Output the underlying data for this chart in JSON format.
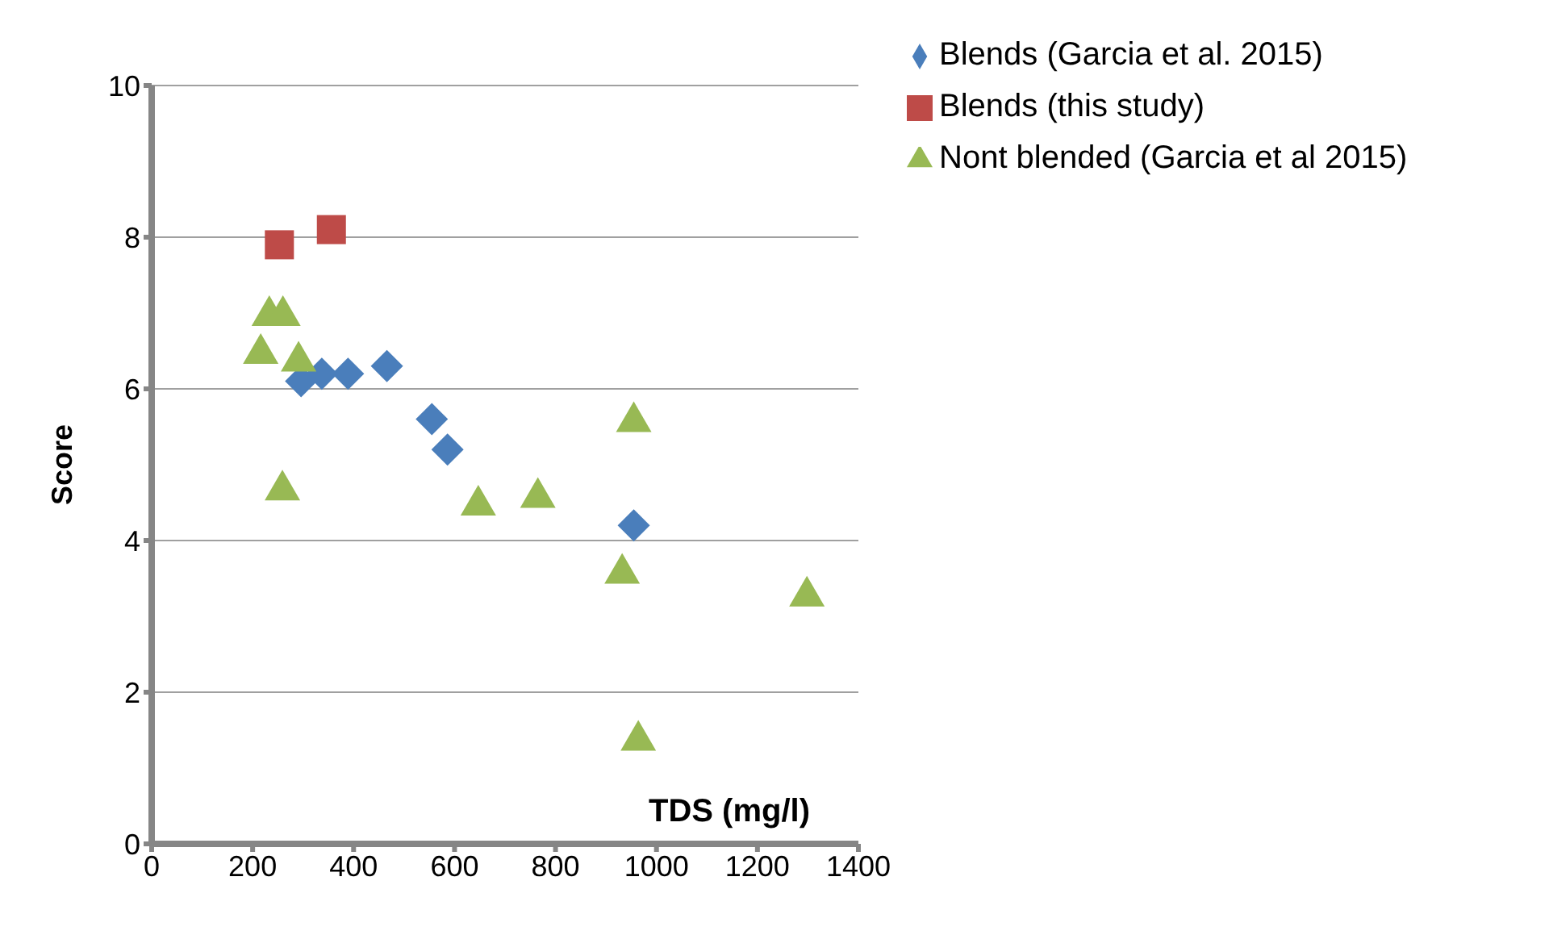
{
  "chart_data": {
    "type": "scatter",
    "xlabel": "TDS (mg/l)",
    "ylabel": "Score",
    "xlim": [
      0,
      1400
    ],
    "xticks": [
      0,
      200,
      400,
      600,
      800,
      1000,
      1200,
      1400
    ],
    "ylim": [
      0,
      10
    ],
    "yticks": [
      0,
      2,
      4,
      6,
      8,
      10
    ],
    "grid": "y",
    "legend": "top right",
    "series": [
      {
        "name": "Blends (Garcia et al. 2015)",
        "color": "#4a7ebb",
        "marker": "diamond",
        "x": [
          296,
          337,
          389,
          466,
          555,
          586,
          955
        ],
        "values": [
          6.1,
          6.2,
          6.2,
          6.3,
          5.6,
          5.2,
          4.2
        ]
      },
      {
        "name": "Blends (this study)",
        "color": "#be4b48",
        "marker": "square",
        "x": [
          253,
          356
        ],
        "values": [
          7.9,
          8.1
        ]
      },
      {
        "name": "Nont blended (Garcia et al 2015)",
        "color": "#98b954",
        "marker": "triangle",
        "x": [
          216,
          233,
          260,
          291,
          259,
          647,
          765,
          955,
          932,
          964,
          1298
        ],
        "values": [
          6.5,
          7.0,
          7.0,
          6.4,
          4.7,
          4.5,
          4.6,
          5.6,
          3.6,
          1.4,
          3.3
        ]
      }
    ]
  }
}
